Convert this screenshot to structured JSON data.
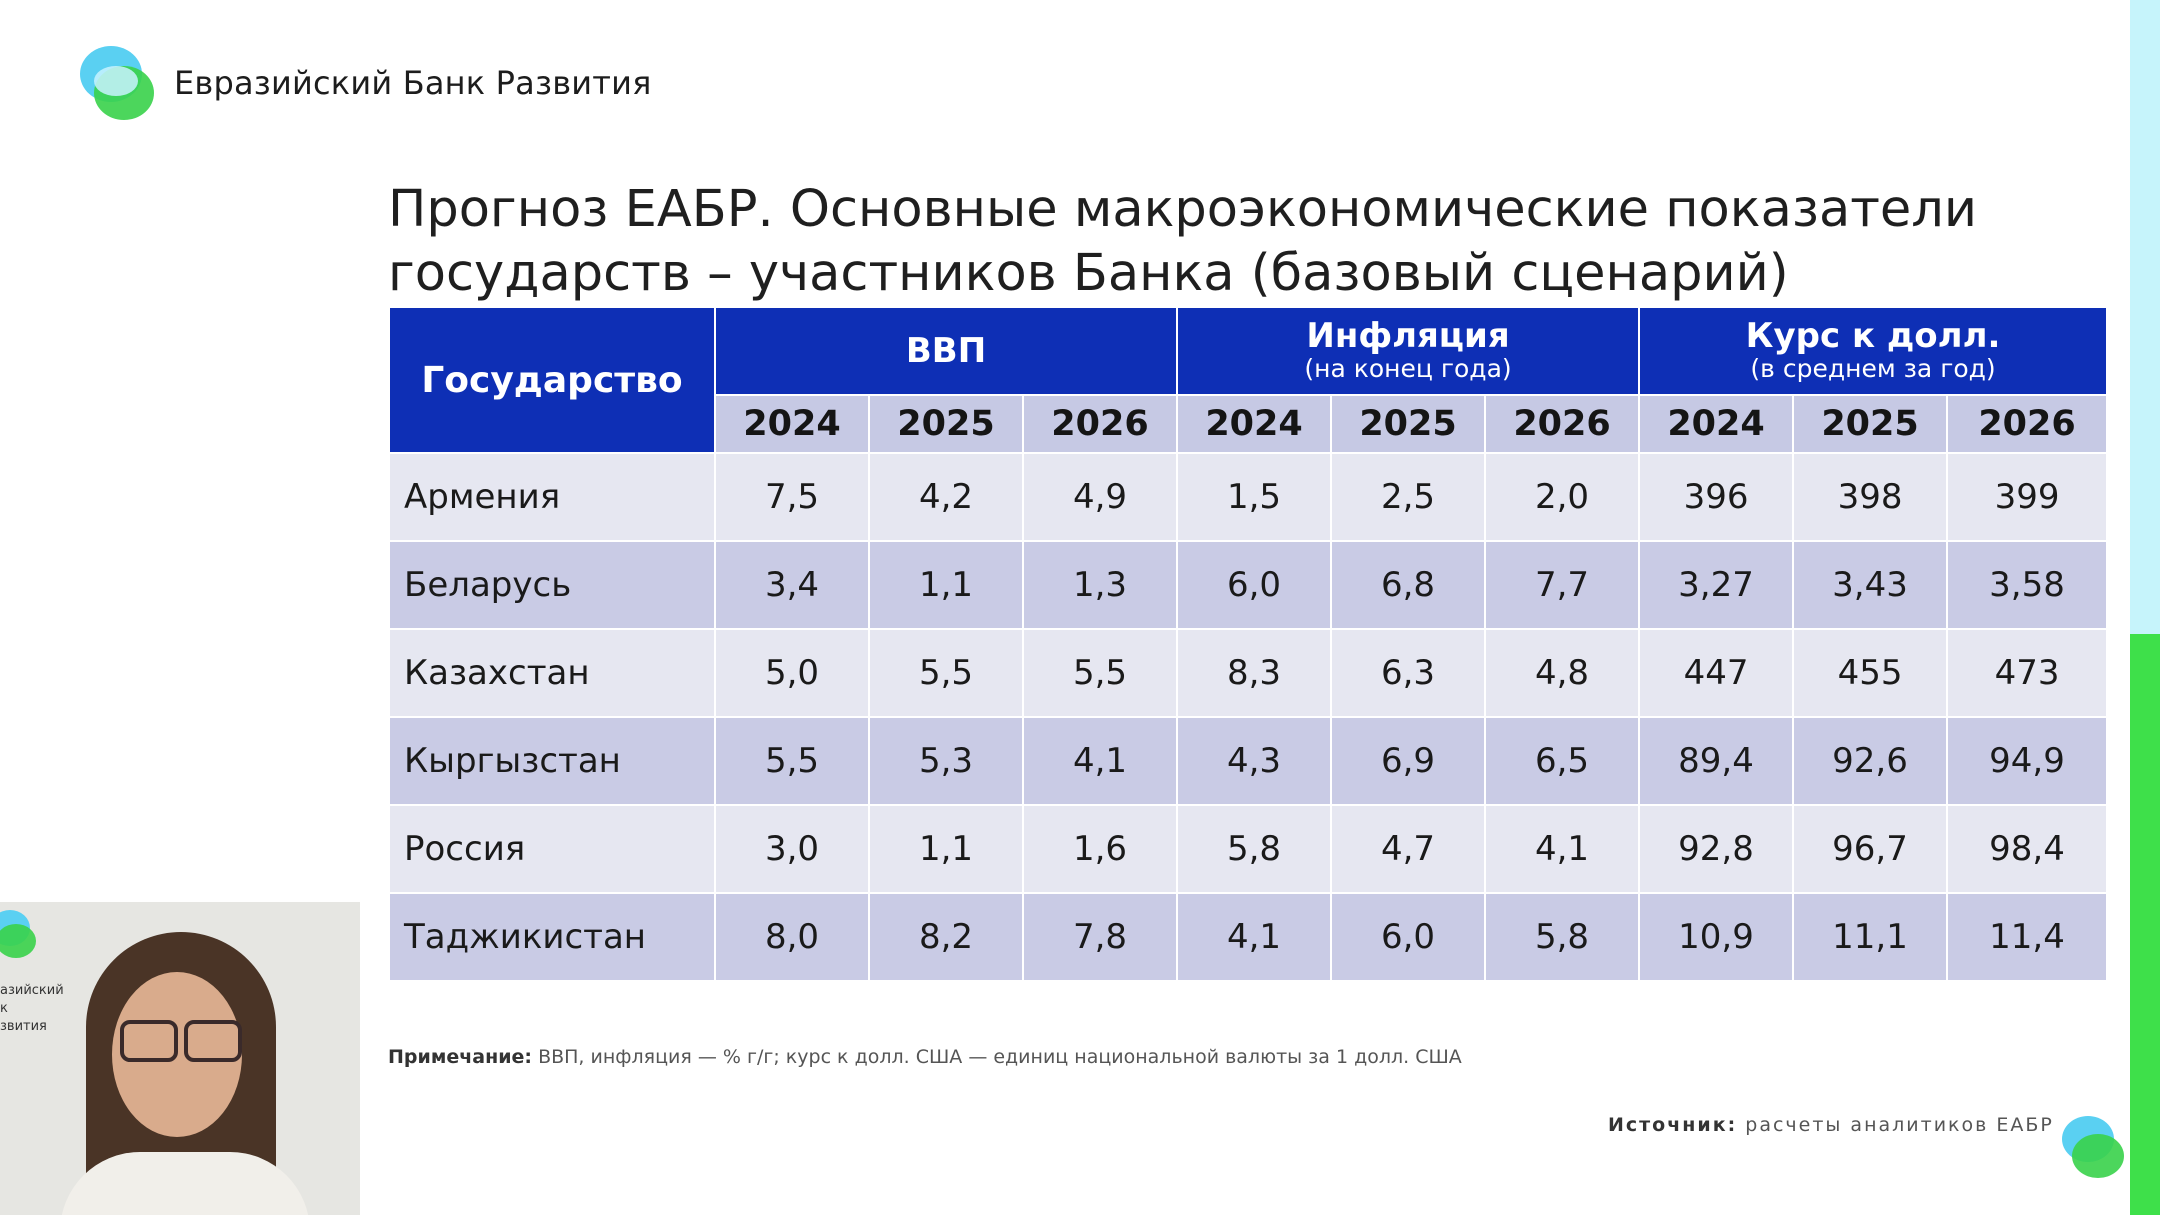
{
  "logo": {
    "text": "Евразийский Банк Развития"
  },
  "title": "Прогноз ЕАБР. Основные макроэкономические показатели государств – участников Банка (базовый сценарий)",
  "table": {
    "state_header": "Государство",
    "groups": [
      {
        "label": "ВВП",
        "sub": ""
      },
      {
        "label": "Инфляция",
        "sub": "(на конец года)"
      },
      {
        "label": "Курс к долл.",
        "sub": "(в среднем за год)"
      }
    ],
    "years": [
      "2024",
      "2025",
      "2026",
      "2024",
      "2025",
      "2026",
      "2024",
      "2025",
      "2026"
    ],
    "rows": [
      {
        "country": "Армения",
        "values": [
          "7,5",
          "4,2",
          "4,9",
          "1,5",
          "2,5",
          "2,0",
          "396",
          "398",
          "399"
        ]
      },
      {
        "country": "Беларусь",
        "values": [
          "3,4",
          "1,1",
          "1,3",
          "6,0",
          "6,8",
          "7,7",
          "3,27",
          "3,43",
          "3,58"
        ]
      },
      {
        "country": "Казахстан",
        "values": [
          "5,0",
          "5,5",
          "5,5",
          "8,3",
          "6,3",
          "4,8",
          "447",
          "455",
          "473"
        ]
      },
      {
        "country": "Кыргызстан",
        "values": [
          "5,5",
          "5,3",
          "4,1",
          "4,3",
          "6,9",
          "6,5",
          "89,4",
          "92,6",
          "94,9"
        ]
      },
      {
        "country": "Россия",
        "values": [
          "3,0",
          "1,1",
          "1,6",
          "5,8",
          "4,7",
          "4,1",
          "92,8",
          "96,7",
          "98,4"
        ]
      },
      {
        "country": "Таджикистан",
        "values": [
          "8,0",
          "8,2",
          "7,8",
          "4,1",
          "6,0",
          "5,8",
          "10,9",
          "11,1",
          "11,4"
        ]
      }
    ]
  },
  "note": {
    "label": "Примечание:",
    "text": " ВВП, инфляция — % г/г; курс к долл. США — единиц национальной валюты за 1 долл. США"
  },
  "source": {
    "label": "Источник:",
    "text": " расчеты аналитиков ЕАБР"
  },
  "webcam": {
    "wall_text": [
      "азийский",
      "к",
      "звития"
    ]
  },
  "colors": {
    "header_blue": "#0e2fb5",
    "row_light": "#e6e7f1",
    "row_dark": "#c9cbe5",
    "accent_green": "#3ee04a",
    "accent_cyan": "#5ad0f2"
  }
}
